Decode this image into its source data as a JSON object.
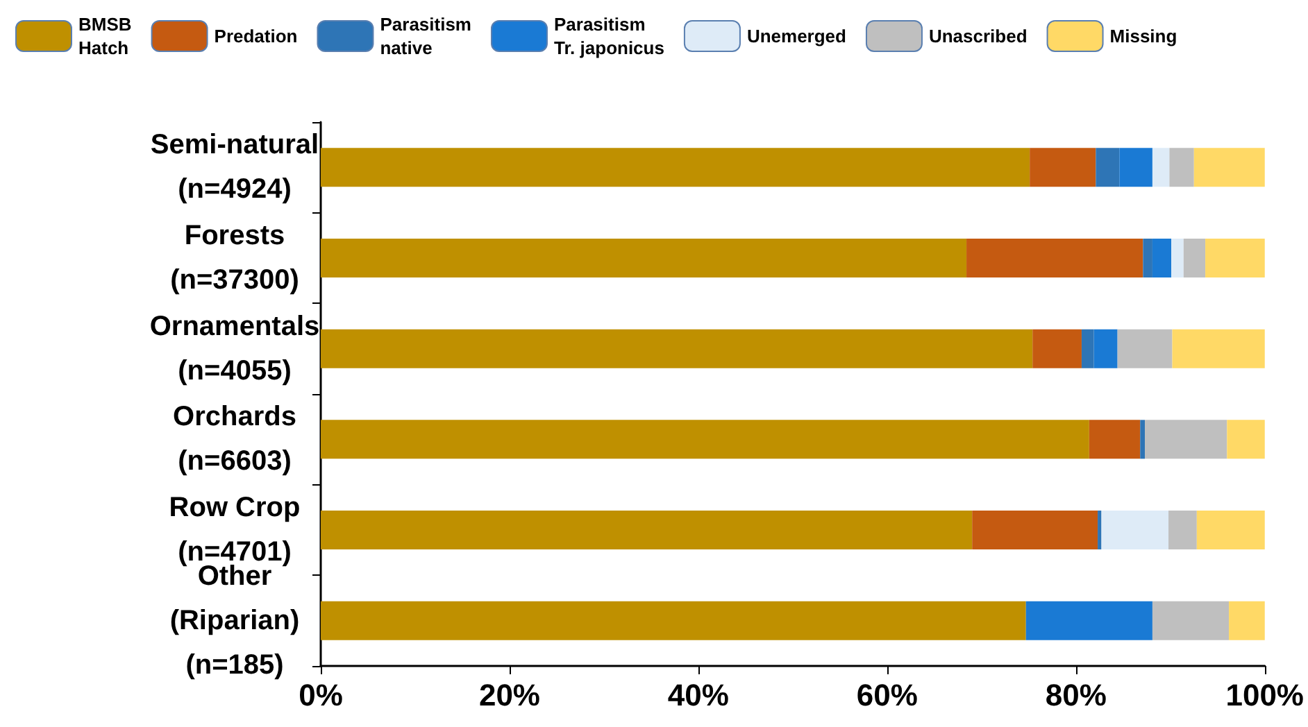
{
  "chart_data": {
    "type": "bar",
    "orientation": "horizontal",
    "stacked": true,
    "categories": [
      "Semi-natural\n(n=4924)",
      "Forests\n(n=37300)",
      "Ornamentals\n(n=4055)",
      "Orchards\n(n=6603)",
      "Row Crop\n(n=4701)",
      "Other\n(Riparian)\n(n=185)"
    ],
    "series": [
      {
        "name": "BMSB\nHatch",
        "color": "#bf9000",
        "values": [
          75.1,
          68.4,
          75.4,
          81.4,
          69.0,
          74.7
        ]
      },
      {
        "name": "Predation",
        "color": "#c55a11",
        "values": [
          7.0,
          18.7,
          5.2,
          5.4,
          13.3,
          0
        ]
      },
      {
        "name": "Parasitism\nnative",
        "color": "#2e75b6",
        "values": [
          2.5,
          1.0,
          1.3,
          0.5,
          0.4,
          0
        ]
      },
      {
        "name": "Parasitism\nTr. japonicus",
        "color": "#1a7ad4",
        "values": [
          3.5,
          2.0,
          2.5,
          0,
          0,
          13.4
        ]
      },
      {
        "name": "Unemerged",
        "color": "#deebf7",
        "values": [
          1.8,
          1.3,
          0,
          0,
          7.1,
          0
        ]
      },
      {
        "name": "Unascribed",
        "color": "#bfbfbf",
        "values": [
          2.6,
          2.3,
          5.8,
          8.7,
          3.0,
          8.1
        ]
      },
      {
        "name": "Missing",
        "color": "#ffd966",
        "values": [
          7.5,
          6.3,
          9.8,
          4.0,
          7.2,
          3.8
        ]
      }
    ],
    "xlim": [
      0,
      100
    ],
    "xticks": [
      {
        "value": 0,
        "label": "0%"
      },
      {
        "value": 20,
        "label": "20%"
      },
      {
        "value": 40,
        "label": "40%"
      },
      {
        "value": 60,
        "label": "60%"
      },
      {
        "value": 80,
        "label": "80%"
      },
      {
        "value": 100,
        "label": "100%"
      }
    ],
    "grid": false,
    "legend": "top"
  }
}
